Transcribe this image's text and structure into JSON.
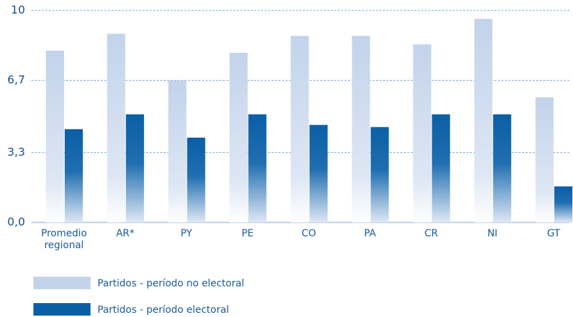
{
  "chart_data": {
    "type": "bar",
    "categories": [
      "Promedio regional",
      "AR*",
      "PY",
      "PE",
      "CO",
      "PA",
      "CR",
      "NI",
      "GT"
    ],
    "series": [
      {
        "name": "Partidos - período no electoral",
        "color": "#c3d3eb",
        "values": [
          8.1,
          8.9,
          6.7,
          8.0,
          8.8,
          8.8,
          8.4,
          9.6,
          5.9
        ]
      },
      {
        "name": "Partidos - período electoral",
        "color": "#0b5fa5",
        "values": [
          4.4,
          5.1,
          4.0,
          5.1,
          4.6,
          4.5,
          5.1,
          5.1,
          1.7
        ]
      }
    ],
    "ylim": [
      0,
      10
    ],
    "yticks": [
      {
        "value": 0,
        "label": "0,0"
      },
      {
        "value": 3.3,
        "label": "3,3"
      },
      {
        "value": 6.7,
        "label": "6,7"
      },
      10
    ],
    "grid": true
  }
}
